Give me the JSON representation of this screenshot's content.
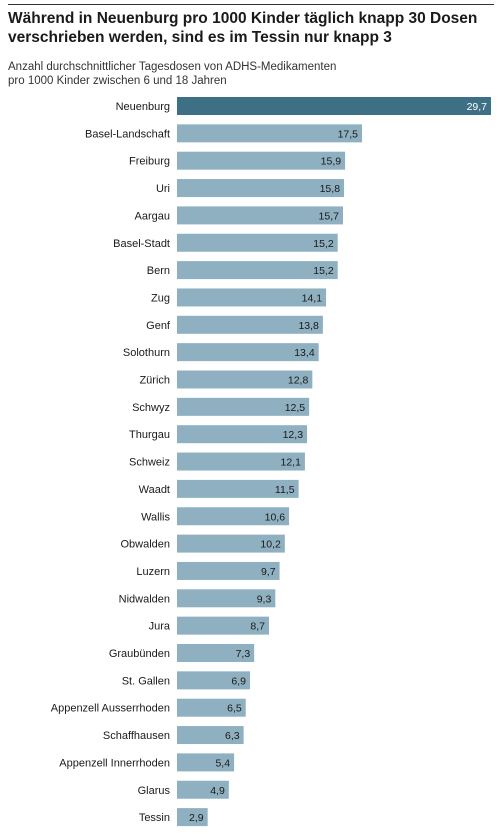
{
  "header": {
    "title_line1": "Während in Neuenburg pro 1000 Kinder täglich knapp 30 Dosen",
    "title_line2": "verschrieben werden, sind es im Tessin nur knapp 3",
    "subtitle_line1": "Anzahl durchschnittlicher Tagesdosen von ADHS-Medikamenten",
    "subtitle_line2": "pro 1000 Kinder zwischen 6 und 18 Jahren"
  },
  "chart_data": {
    "type": "bar",
    "orientation": "horizontal",
    "title": "Während in Neuenburg pro 1000 Kinder täglich knapp 30 Dosen verschrieben werden, sind es im Tessin nur knapp 3",
    "subtitle": "Anzahl durchschnittlicher Tagesdosen von ADHS-Medikamenten pro 1000 Kinder zwischen 6 und 18 Jahren",
    "xlabel": "",
    "ylabel": "",
    "xlim": [
      0,
      29.7
    ],
    "grid": false,
    "categories": [
      "Neuenburg",
      "Basel-Landschaft",
      "Freiburg",
      "Uri",
      "Aargau",
      "Basel-Stadt",
      "Bern",
      "Zug",
      "Genf",
      "Solothurn",
      "Zürich",
      "Schwyz",
      "Thurgau",
      "Schweiz",
      "Waadt",
      "Wallis",
      "Obwalden",
      "Luzern",
      "Nidwalden",
      "Jura",
      "Graubünden",
      "St. Gallen",
      "Appenzell Ausserrhoden",
      "Schaffhausen",
      "Appenzell Innerrhoden",
      "Glarus",
      "Tessin"
    ],
    "values": [
      29.7,
      17.5,
      15.9,
      15.8,
      15.7,
      15.2,
      15.2,
      14.1,
      13.8,
      13.4,
      12.8,
      12.5,
      12.3,
      12.1,
      11.5,
      10.6,
      10.2,
      9.7,
      9.3,
      8.7,
      7.3,
      6.9,
      6.5,
      6.3,
      5.4,
      4.9,
      2.9
    ],
    "value_labels": [
      "29,7",
      "17,5",
      "15,9",
      "15,8",
      "15,7",
      "15,2",
      "15,2",
      "14,1",
      "13,8",
      "13,4",
      "12,8",
      "12,5",
      "12,3",
      "12,1",
      "11,5",
      "10,6",
      "10,2",
      "9,7",
      "9,3",
      "8,7",
      "7,3",
      "6,9",
      "6,5",
      "6,3",
      "5,4",
      "4,9",
      "2,9"
    ],
    "highlight_category": "Neuenburg",
    "colors": {
      "highlight": "#3d6f85",
      "bar": "#8fb0c0",
      "label_highlight": "#ffffff",
      "label": "#1a1a1a"
    }
  }
}
